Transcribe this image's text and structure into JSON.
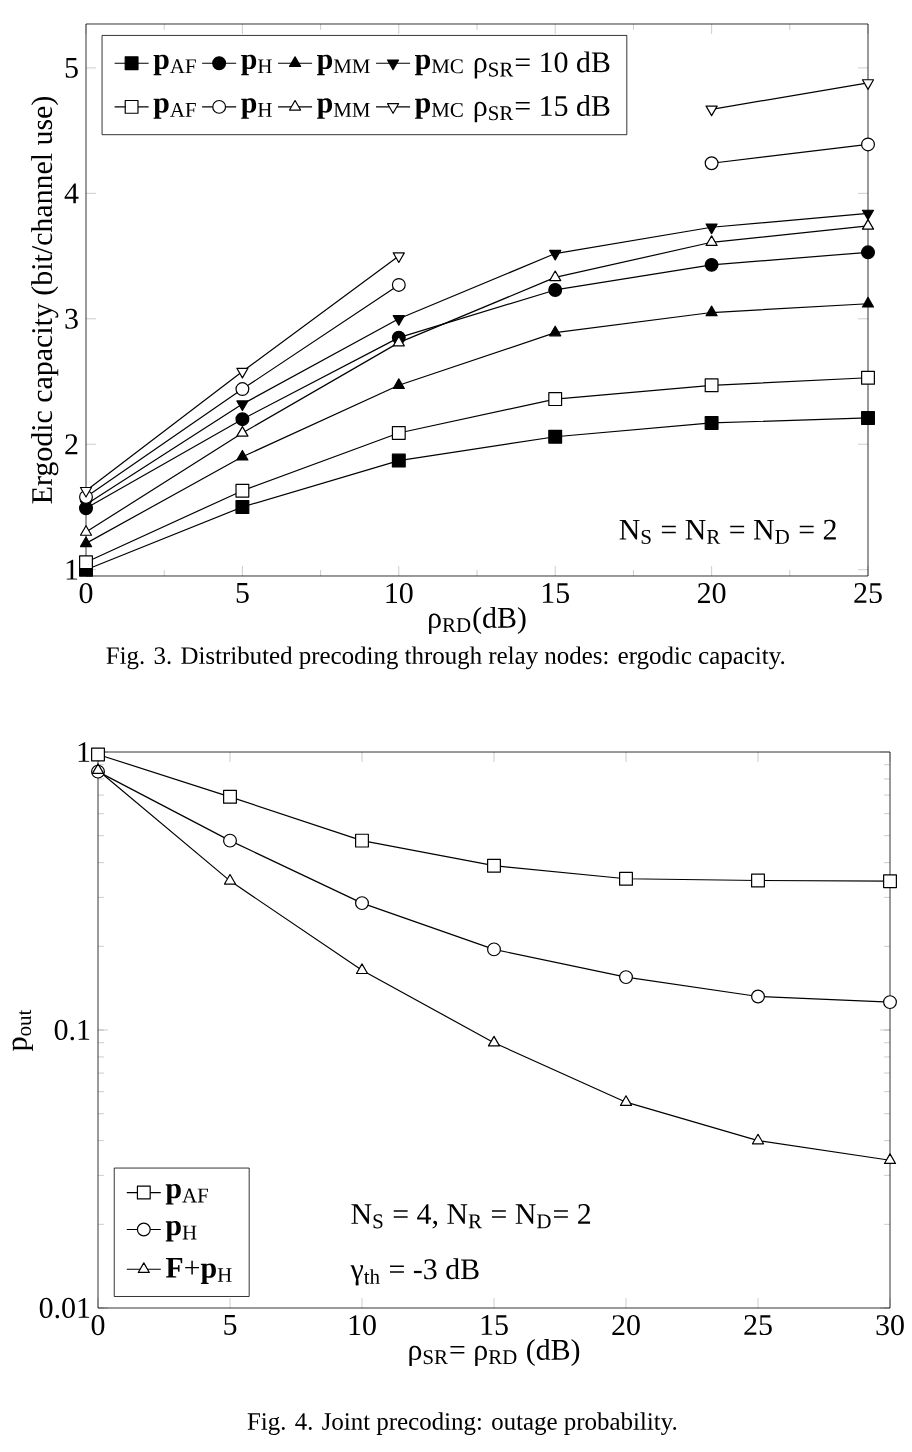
{
  "chart_data": [
    {
      "type": "line",
      "xlabel": "ρ$_{RD}$(dB)",
      "ylabel": "Ergodic capacity (bit/channel use)",
      "x": [
        0,
        5,
        10,
        15,
        20,
        25
      ],
      "xlim": [
        0,
        25
      ],
      "xticks": [
        0,
        5,
        10,
        15,
        20,
        25
      ],
      "ylim": [
        0.95,
        5.35
      ],
      "yticks": [
        1,
        2,
        3,
        4,
        5
      ],
      "legend": "top left",
      "grid": false,
      "line_style": "solid",
      "annotations": [
        "ρ$_{SR}$= 10 dB",
        "ρ$_{SR}$= 15 dB",
        "N$_{S}$ = N$_{R}$ = N$_{D}$ = 2",
        "Fig. 3.    Distributed precoding through relay nodes: ergodic capacity."
      ],
      "series": [
        {
          "name": "**p**$_{AF}$",
          "color": "#000000",
          "marker": "square",
          "values": [
            1.0,
            1.5,
            1.87,
            2.06,
            2.17,
            2.21
          ]
        },
        {
          "name": "**p**$_{H}$",
          "color": "#000000",
          "marker": "circle",
          "values": [
            1.49,
            2.2,
            2.85,
            3.23,
            3.43,
            3.53
          ]
        },
        {
          "name": "**p**$_{MM}$",
          "color": "#000000",
          "marker": "triangle",
          "values": [
            1.21,
            1.9,
            2.47,
            2.89,
            3.05,
            3.12
          ]
        },
        {
          "name": "**p**$_{MC}$",
          "color": "#000000",
          "marker": "triangle-down",
          "values": [
            1.52,
            2.32,
            3.0,
            3.52,
            3.73,
            3.84
          ]
        },
        {
          "name": "**p**$_{AF}$",
          "color": "#000000",
          "marker": "square-open",
          "values": [
            1.06,
            1.63,
            2.09,
            2.36,
            2.47,
            2.53
          ]
        },
        {
          "name": "**p**$_{H}$",
          "color": "#000000",
          "marker": "circle-open",
          "values": [
            1.58,
            2.44,
            3.27,
            null,
            4.24,
            4.39
          ]
        },
        {
          "name": "**p**$_{MM}$",
          "color": "#000000",
          "marker": "triangle-open",
          "values": [
            1.3,
            2.09,
            2.81,
            3.33,
            3.61,
            3.74
          ]
        },
        {
          "name": "**p**$_{MC}$",
          "color": "#000000",
          "marker": "triangle-down-open",
          "values": [
            1.63,
            2.58,
            3.5,
            null,
            4.67,
            4.88
          ]
        }
      ]
    },
    {
      "type": "line",
      "xlabel": "ρ$_{SR}$= ρ$_{RD}$ (dB)",
      "ylabel": "p$_{out}$",
      "x": [
        0,
        5,
        10,
        15,
        20,
        25,
        30
      ],
      "xlim": [
        0,
        30
      ],
      "xticks": [
        0,
        5,
        10,
        15,
        20,
        25,
        30
      ],
      "ylim": [
        0.01,
        1
      ],
      "yticks": [
        0.01,
        0.1,
        1
      ],
      "log": "y",
      "legend": "bottom left",
      "grid": false,
      "line_style": "solid",
      "annotations": [
        "N$_{S}$ = 4, N$_{R}$ = N$_{D}$= 2",
        "γ$_{th}$ = -3 dB",
        "Fig. 4.    Joint precoding: outage probability."
      ],
      "series": [
        {
          "name": "**p**$_{AF}$",
          "color": "#000000",
          "marker": "square-open",
          "values": [
            0.98,
            0.69,
            0.48,
            0.39,
            0.35,
            0.345,
            0.343
          ]
        },
        {
          "name": "**p**$_{H}$",
          "color": "#000000",
          "marker": "circle-open",
          "values": [
            0.85,
            0.48,
            0.286,
            0.195,
            0.155,
            0.132,
            0.126
          ]
        },
        {
          "name": "**F**+**p**$_{H}$",
          "color": "#000000",
          "marker": "triangle-open",
          "values": [
            0.86,
            0.344,
            0.164,
            0.09,
            0.055,
            0.04,
            0.034
          ]
        }
      ]
    }
  ]
}
